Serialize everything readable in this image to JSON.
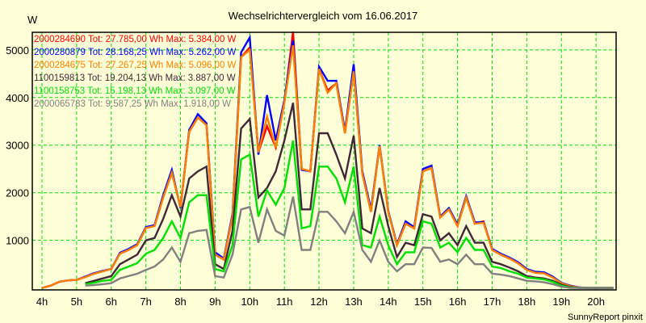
{
  "chart_data": {
    "type": "line",
    "title": "Wechselrichtervergleich vom 16.06.2017",
    "ylabel": "W",
    "xlabel": "",
    "footer": "SunnyReport pinxit",
    "x_start_hour": 4,
    "x_step_hours": 0.25,
    "xlim": [
      3.72,
      20.58
    ],
    "ylim": [
      -40,
      5370
    ],
    "x_ticks": [
      "4h",
      "5h",
      "6h",
      "7h",
      "8h",
      "9h",
      "10h",
      "11h",
      "12h",
      "13h",
      "14h",
      "15h",
      "16h",
      "17h",
      "18h",
      "19h",
      "20h"
    ],
    "y_ticks": [
      "1000",
      "2000",
      "3000",
      "4000",
      "5000"
    ],
    "grid": true,
    "legend_placement": "top-left",
    "colors": {
      "background": "#ffffd8",
      "grid": "#00e000",
      "axis": "#000000"
    },
    "series": [
      {
        "name": "2000284690",
        "legend": "2000284690 Tot: 27.785,00 Wh Max: 5.384,00 W",
        "color": "#ff0000",
        "values": [
          0,
          50,
          130,
          160,
          170,
          230,
          300,
          350,
          400,
          720,
          800,
          900,
          1260,
          1300,
          1900,
          2420,
          1700,
          3280,
          3580,
          3420,
          700,
          600,
          1500,
          4850,
          5050,
          2850,
          3400,
          2950,
          3900,
          5384,
          2500,
          2450,
          4600,
          4150,
          4300,
          3250,
          4550,
          2400,
          1600,
          2980,
          1600,
          900,
          1350,
          1250,
          2450,
          2520,
          1480,
          1650,
          1300,
          1900,
          1350,
          1400,
          800,
          700,
          620,
          520,
          380,
          320,
          310,
          220,
          100,
          40,
          10,
          0,
          0,
          0,
          0
        ]
      },
      {
        "name": "2000280879",
        "legend": "2000280879 Tot: 28.168,25 Wh Max: 5.262,00 W",
        "color": "#0000ff",
        "values": [
          0,
          50,
          130,
          160,
          170,
          240,
          310,
          360,
          400,
          740,
          820,
          920,
          1280,
          1320,
          1950,
          2480,
          1680,
          3320,
          3650,
          3460,
          750,
          620,
          1550,
          4950,
          5262,
          2800,
          4050,
          3100,
          3950,
          5200,
          2480,
          2450,
          4650,
          4350,
          4350,
          3300,
          4700,
          2450,
          1650,
          3000,
          1620,
          920,
          1400,
          1280,
          2500,
          2570,
          1500,
          1680,
          1330,
          1930,
          1380,
          1380,
          820,
          720,
          640,
          540,
          400,
          340,
          330,
          240,
          110,
          50,
          15,
          0,
          0,
          0,
          0
        ]
      },
      {
        "name": "2000284675",
        "legend": "2000284675 Tot: 27.267,25 Wh Max: 5.096,00 W",
        "color": "#ff8000",
        "values": [
          0,
          50,
          130,
          160,
          170,
          230,
          300,
          350,
          400,
          720,
          800,
          900,
          1260,
          1300,
          1900,
          2420,
          1700,
          3280,
          3580,
          3420,
          700,
          600,
          1500,
          4850,
          5000,
          2850,
          3600,
          2950,
          3900,
          5096,
          2500,
          2450,
          4600,
          4100,
          4300,
          3250,
          4550,
          2400,
          1600,
          2980,
          1600,
          900,
          1350,
          1250,
          2450,
          2520,
          1480,
          1650,
          1300,
          1900,
          1350,
          1370,
          800,
          700,
          620,
          520,
          380,
          320,
          310,
          220,
          100,
          40,
          10,
          0,
          0,
          0,
          0
        ]
      },
      {
        "name": "1100159813",
        "legend": "1100159813 Tot: 19.204,13 Wh Max: 3.887,00 W",
        "color": "#402838",
        "values": [
          null,
          null,
          null,
          null,
          null,
          100,
          150,
          200,
          250,
          500,
          600,
          700,
          1000,
          1050,
          1450,
          1950,
          1500,
          2300,
          2450,
          2550,
          500,
          400,
          1200,
          3350,
          3550,
          1900,
          2100,
          2450,
          3100,
          3887,
          1650,
          1650,
          3250,
          3250,
          2800,
          2300,
          3200,
          1250,
          1150,
          2100,
          1300,
          650,
          950,
          900,
          1550,
          1500,
          1000,
          1150,
          900,
          1300,
          950,
          950,
          550,
          500,
          430,
          350,
          250,
          220,
          200,
          150,
          70,
          20,
          0,
          0,
          0,
          0,
          0
        ]
      },
      {
        "name": "1100158753",
        "legend": "1100158753 Tot: 15.198,13 Wh Max: 3.097,00 W",
        "color": "#00e000",
        "values": [
          null,
          null,
          null,
          null,
          null,
          80,
          110,
          150,
          170,
          380,
          450,
          520,
          720,
          800,
          1050,
          1400,
          1050,
          1800,
          1950,
          1950,
          400,
          350,
          900,
          2700,
          2800,
          1500,
          2050,
          1750,
          2100,
          3097,
          1250,
          1300,
          2550,
          2550,
          2300,
          1800,
          2550,
          900,
          850,
          1500,
          900,
          500,
          750,
          750,
          1400,
          1350,
          850,
          950,
          750,
          1050,
          800,
          800,
          450,
          420,
          350,
          300,
          220,
          200,
          180,
          130,
          50,
          10,
          0,
          0,
          0,
          0,
          0
        ]
      },
      {
        "name": "2000065783",
        "legend": "2000065783 Tot: 9.587,25 Wh Max: 1.918,00 W",
        "color": "#808080",
        "values": [
          null,
          null,
          null,
          null,
          null,
          50,
          60,
          80,
          100,
          200,
          250,
          300,
          380,
          450,
          600,
          850,
          550,
          1150,
          1200,
          1220,
          250,
          220,
          700,
          1650,
          1700,
          950,
          1650,
          1200,
          1100,
          1918,
          800,
          800,
          1600,
          1600,
          1400,
          1150,
          1600,
          800,
          550,
          1000,
          550,
          350,
          500,
          500,
          850,
          840,
          550,
          600,
          500,
          700,
          500,
          500,
          300,
          280,
          250,
          200,
          150,
          140,
          120,
          80,
          30,
          0,
          0,
          0,
          0,
          0,
          0
        ]
      }
    ]
  }
}
